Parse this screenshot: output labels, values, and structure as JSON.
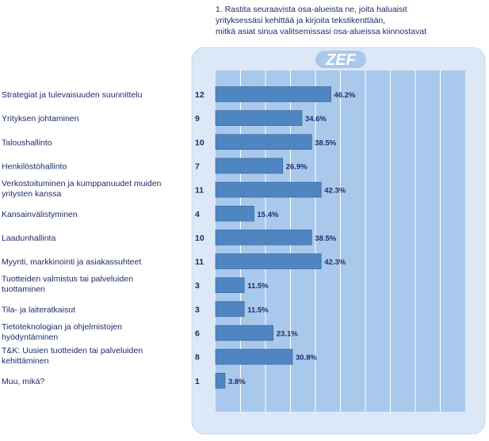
{
  "question": "1. Rastita seuraavista osa-alueista ne, joita haluaisit\nyrityksessäsi kehittää ja kirjoita tekstikenttään,\nmitkä asiat sinua valitsemissasi osa-alueissa kiinnostavat",
  "logo": "ZEF",
  "colors": {
    "bar": "#4f86c1",
    "bar_edge": "#2f5f97",
    "panel": "#dce8f7",
    "panel_edge": "#c4d7ee",
    "plot": "#a9c9ec",
    "grid": "#ffffff",
    "logo_bg": "#a9c9ec"
  },
  "chart_data": {
    "type": "bar",
    "orientation": "horizontal",
    "xlim": [
      0,
      100
    ],
    "grid": true,
    "categories": [
      [
        "Strategiat ja tulevaisuuden suunnittelu"
      ],
      [
        "Yrityksen johtaminen"
      ],
      [
        "Taloushallinto"
      ],
      [
        "Henkilöstöhallinto"
      ],
      [
        "Verkostoituminen ja kumppanuudet muiden",
        "yritysten kanssa"
      ],
      [
        "Kansainvälistyminen"
      ],
      [
        "Laadunhallinta"
      ],
      [
        "Myynti, markkinointi ja asiakassuhteet"
      ],
      [
        "Tuotteiden valmistus tai palveluiden",
        "tuottaminen"
      ],
      [
        "Tila- ja laiteratkaisut"
      ],
      [
        "Tietoteknologian ja ohjelmistojen",
        "hyödyntäminen"
      ],
      [
        "T&K: Uusien tuotteiden tai palveluiden",
        "kehittäminen"
      ],
      [
        "Muu, mikä?"
      ]
    ],
    "counts": [
      "12",
      "9",
      "10",
      "7",
      "11",
      "4",
      "10",
      "11",
      "3",
      "3",
      "6",
      "8",
      "1"
    ],
    "values": [
      46.2,
      34.6,
      38.5,
      26.9,
      42.3,
      15.4,
      38.5,
      42.3,
      11.5,
      11.5,
      23.1,
      30.8,
      3.8
    ],
    "value_labels": [
      "46.2%",
      "34.6%",
      "38.5%",
      "26.9%",
      "42.3%",
      "15.4%",
      "38.5%",
      "42.3%",
      "11.5%",
      "11.5%",
      "23.1%",
      "30.8%",
      "3.8%"
    ]
  }
}
